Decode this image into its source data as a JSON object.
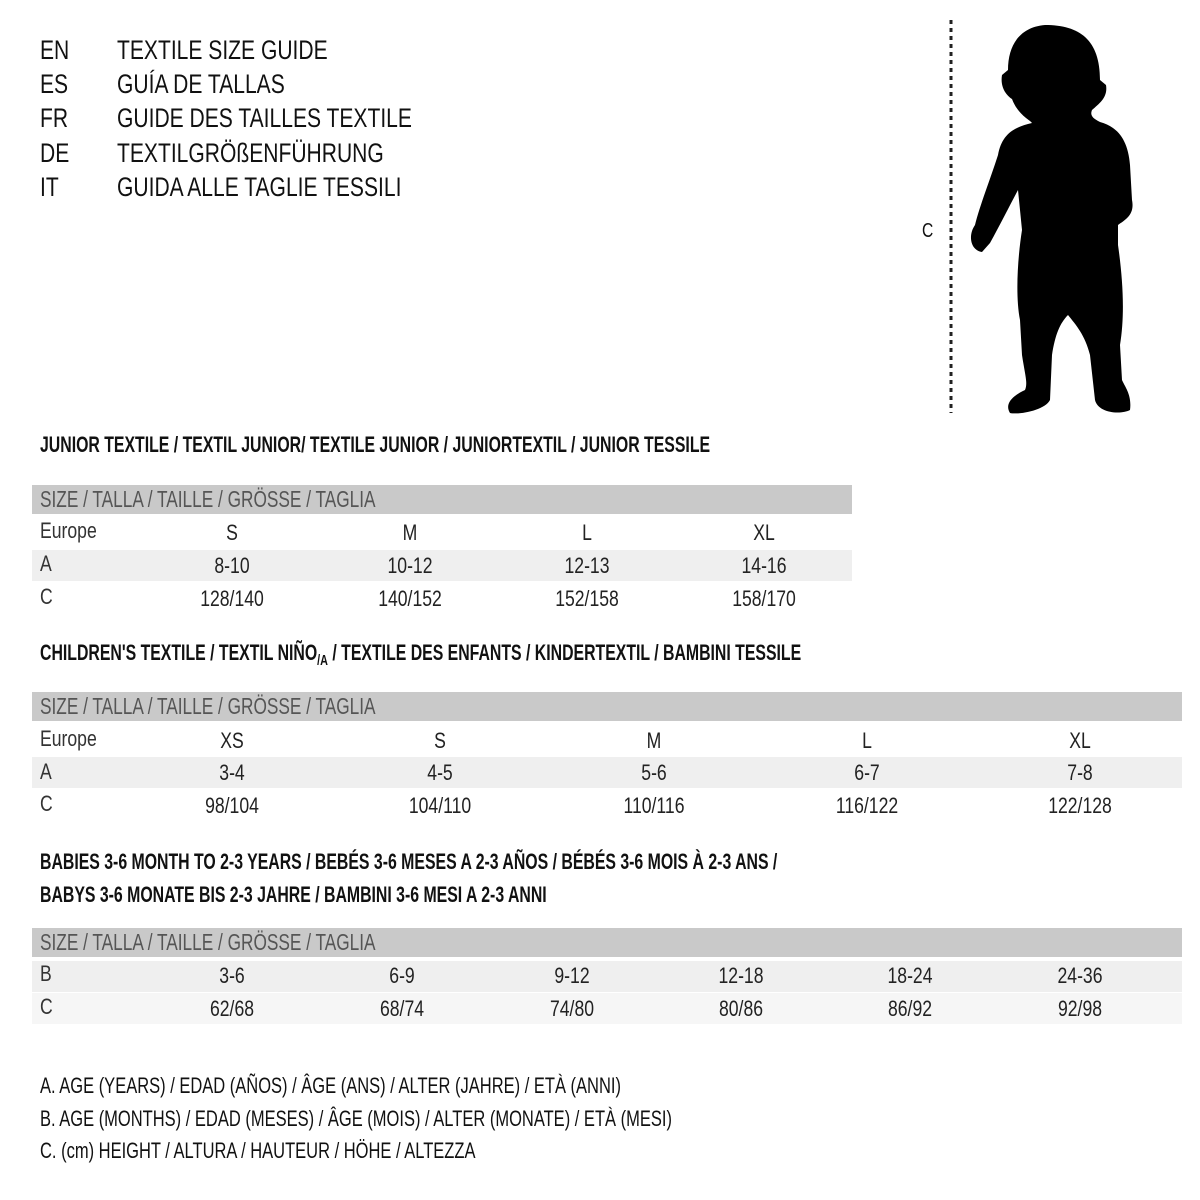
{
  "header": [
    {
      "code": "EN",
      "text": "TEXTILE SIZE GUIDE"
    },
    {
      "code": "ES",
      "text": "GUÍA DE TALLAS"
    },
    {
      "code": "FR",
      "text": "GUIDE DES TAILLES TEXTILE"
    },
    {
      "code": "DE",
      "text": "TEXTILGRÖßENFÜHRUNG"
    },
    {
      "code": "IT",
      "text": "GUIDA ALLE TAGLIE TESSILI"
    }
  ],
  "figure": {
    "label": "C",
    "icon": "child-silhouette"
  },
  "size_header": "SIZE / TALLA / TAILLE / GRÖSSE / TAGLIA",
  "junior": {
    "title": "JUNIOR TEXTILE / TEXTIL JUNIOR/ TEXTILE JUNIOR / JUNIORTEXTIL / JUNIOR TESSILE",
    "rows": [
      {
        "label": "Europe",
        "values": [
          "S",
          "M",
          "L",
          "XL"
        ]
      },
      {
        "label": "A",
        "values": [
          "8-10",
          "10-12",
          "12-13",
          "14-16"
        ]
      },
      {
        "label": "C",
        "values": [
          "128/140",
          "140/152",
          "152/158",
          "158/170"
        ]
      }
    ]
  },
  "children": {
    "title_a": "CHILDREN'S TEXTILE / TEXTIL NIÑO",
    "title_sub": "/A",
    "title_b": " / TEXTILE DES ENFANTS / KINDERTEXTIL / BAMBINI TESSILE",
    "rows": [
      {
        "label": "Europe",
        "values": [
          "XS",
          "S",
          "M",
          "L",
          "XL"
        ]
      },
      {
        "label": "A",
        "values": [
          "3-4",
          "4-5",
          "5-6",
          "6-7",
          "7-8"
        ]
      },
      {
        "label": "C",
        "values": [
          "98/104",
          "104/110",
          "110/116",
          "116/122",
          "122/128"
        ]
      }
    ]
  },
  "babies": {
    "title_line1": "BABIES 3-6 MONTH TO 2-3 YEARS / BEBÉS 3-6 MESES A 2-3 AÑOS / BÉBÉS 3-6 MOIS À 2-3 ANS /",
    "title_line2": "BABYS 3-6 MONATE BIS 2-3 JAHRE / BAMBINI 3-6 MESI A 2-3 ANNI",
    "rows": [
      {
        "label": "B",
        "values": [
          "3-6",
          "6-9",
          "9-12",
          "12-18",
          "18-24",
          "24-36"
        ]
      },
      {
        "label": "C",
        "values": [
          "62/68",
          "68/74",
          "74/80",
          "80/86",
          "86/92",
          "92/98"
        ]
      }
    ]
  },
  "legend": [
    "A. AGE (YEARS) / EDAD (AÑOS) / ÂGE (ANS) / ALTER (JAHRE) / ETÀ (ANNI)",
    "B. AGE (MONTHS) / EDAD (MESES) / ÂGE (MOIS) / ALTER (MONATE) / ETÀ (MESI)",
    "C. (cm) HEIGHT / ALTURA / HAUTEUR / HÖHE / ALTEZZA"
  ],
  "colors": {
    "header_bar": "#c9c9c9",
    "row_shade": "#efefef"
  }
}
